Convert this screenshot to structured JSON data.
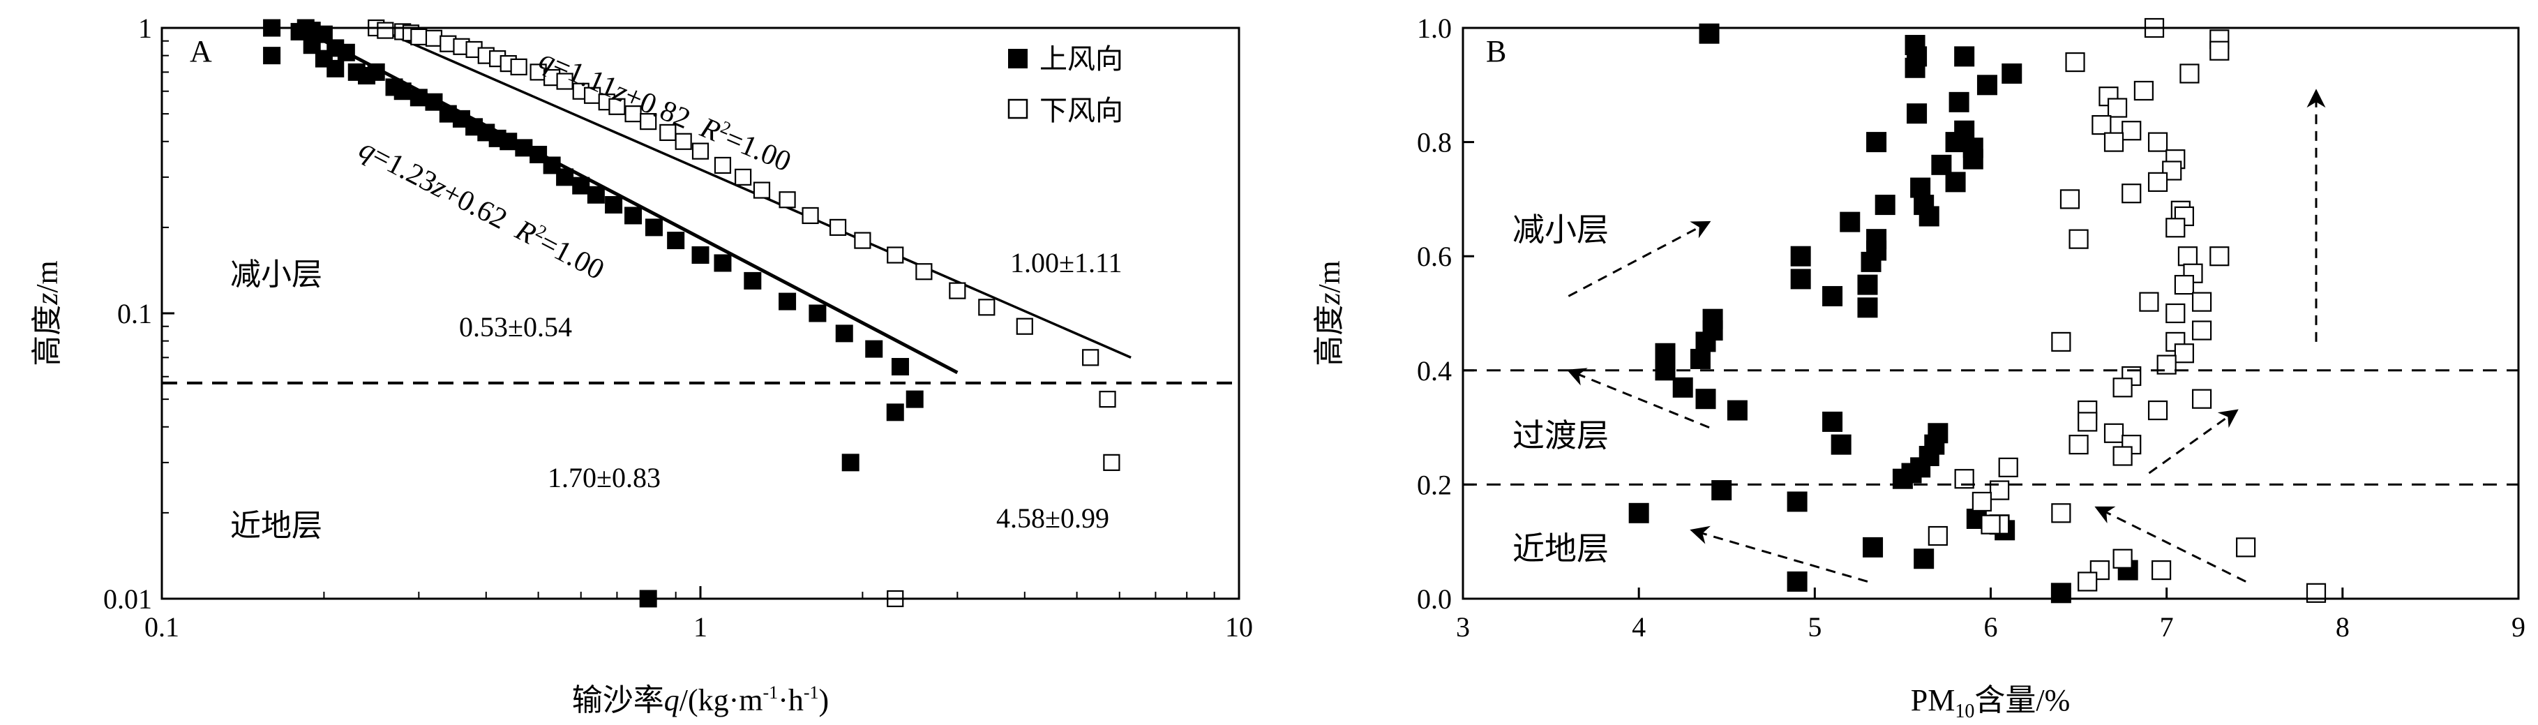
{
  "chart_data": [
    {
      "panel_label": "A",
      "type": "scatter",
      "xscale": "log",
      "yscale": "log",
      "xlim": [
        0.1,
        10
      ],
      "ylim": [
        0.01,
        1
      ],
      "x_ticks": [
        "0.1",
        "1",
        "10"
      ],
      "y_ticks": [
        "0.01",
        "0.1",
        "1"
      ],
      "xlabel_prefix": "输沙率",
      "xlabel_var": "q",
      "xlabel_unit_a": "/(kg·m",
      "xlabel_sup1": "-1",
      "xlabel_unit_b": "·h",
      "xlabel_sup2": "-1",
      "xlabel_unit_c": ")",
      "ylabel_prefix": "高度",
      "ylabel_var": "z",
      "ylabel_unit": "/m",
      "legend": [
        "上风向",
        "下风向"
      ],
      "legend_position": "top-right",
      "divider_y": 0.057,
      "series": [
        {
          "name": "上风向",
          "marker": "filled-square",
          "points": [
            [
              0.16,
              1.0
            ],
            [
              0.16,
              0.8
            ],
            [
              0.18,
              0.97
            ],
            [
              0.185,
              1.0
            ],
            [
              0.19,
              0.98
            ],
            [
              0.19,
              0.87
            ],
            [
              0.2,
              0.95
            ],
            [
              0.2,
              0.78
            ],
            [
              0.21,
              0.85
            ],
            [
              0.21,
              0.72
            ],
            [
              0.22,
              0.82
            ],
            [
              0.23,
              0.7
            ],
            [
              0.24,
              0.68
            ],
            [
              0.25,
              0.7
            ],
            [
              0.27,
              0.62
            ],
            [
              0.28,
              0.6
            ],
            [
              0.3,
              0.57
            ],
            [
              0.32,
              0.55
            ],
            [
              0.34,
              0.5
            ],
            [
              0.36,
              0.48
            ],
            [
              0.38,
              0.45
            ],
            [
              0.4,
              0.43
            ],
            [
              0.42,
              0.41
            ],
            [
              0.44,
              0.4
            ],
            [
              0.47,
              0.38
            ],
            [
              0.5,
              0.36
            ],
            [
              0.53,
              0.33
            ],
            [
              0.56,
              0.3
            ],
            [
              0.6,
              0.28
            ],
            [
              0.64,
              0.26
            ],
            [
              0.69,
              0.24
            ],
            [
              0.75,
              0.22
            ],
            [
              0.82,
              0.2
            ],
            [
              0.9,
              0.18
            ],
            [
              1.0,
              0.16
            ],
            [
              1.1,
              0.15
            ],
            [
              1.25,
              0.13
            ],
            [
              1.45,
              0.11
            ],
            [
              1.65,
              0.1
            ],
            [
              1.85,
              0.085
            ],
            [
              2.1,
              0.075
            ],
            [
              2.35,
              0.065
            ],
            [
              2.5,
              0.05
            ],
            [
              2.3,
              0.045
            ],
            [
              1.9,
              0.03
            ],
            [
              0.8,
              0.01
            ]
          ]
        },
        {
          "name": "下风向",
          "marker": "open-square",
          "points": [
            [
              0.25,
              1.0
            ],
            [
              0.26,
              0.98
            ],
            [
              0.28,
              0.97
            ],
            [
              0.29,
              0.96
            ],
            [
              0.3,
              0.93
            ],
            [
              0.32,
              0.92
            ],
            [
              0.34,
              0.88
            ],
            [
              0.36,
              0.86
            ],
            [
              0.38,
              0.84
            ],
            [
              0.4,
              0.8
            ],
            [
              0.42,
              0.78
            ],
            [
              0.44,
              0.75
            ],
            [
              0.46,
              0.73
            ],
            [
              0.5,
              0.7
            ],
            [
              0.53,
              0.67
            ],
            [
              0.56,
              0.65
            ],
            [
              0.6,
              0.6
            ],
            [
              0.63,
              0.58
            ],
            [
              0.67,
              0.55
            ],
            [
              0.7,
              0.53
            ],
            [
              0.75,
              0.5
            ],
            [
              0.8,
              0.47
            ],
            [
              0.87,
              0.43
            ],
            [
              0.93,
              0.4
            ],
            [
              1.0,
              0.37
            ],
            [
              1.1,
              0.33
            ],
            [
              1.2,
              0.3
            ],
            [
              1.3,
              0.27
            ],
            [
              1.45,
              0.25
            ],
            [
              1.6,
              0.22
            ],
            [
              1.8,
              0.2
            ],
            [
              2.0,
              0.18
            ],
            [
              2.3,
              0.16
            ],
            [
              2.6,
              0.14
            ],
            [
              3.0,
              0.12
            ],
            [
              3.4,
              0.105
            ],
            [
              4.0,
              0.09
            ],
            [
              5.3,
              0.07
            ],
            [
              5.7,
              0.05
            ],
            [
              5.8,
              0.03
            ],
            [
              2.3,
              0.01
            ]
          ]
        }
      ],
      "fit_lines": [
        {
          "series": "上风向",
          "x": [
            0.18,
            3.0
          ],
          "y": [
            1.0,
            0.062
          ]
        },
        {
          "series": "下风向",
          "x": [
            0.25,
            6.3
          ],
          "y": [
            1.0,
            0.07
          ]
        }
      ],
      "annotations": {
        "eq_downwind_q": "q",
        "eq_downwind_mid": "=1.11",
        "eq_downwind_z": "z",
        "eq_downwind_rest": "+0.82  ",
        "eq_downwind_R": "R",
        "eq_downwind_sup": "2",
        "eq_downwind_end": "=1.00",
        "eq_upwind_q": "q",
        "eq_upwind_mid": "=1.23",
        "eq_upwind_z": "z",
        "eq_upwind_rest": "+0.62  ",
        "eq_upwind_R": "R",
        "eq_upwind_sup": "2",
        "eq_upwind_end": "=1.00",
        "layer_upper": "减小层",
        "layer_lower": "近地层",
        "val_upper_upwind": "0.53±0.54",
        "val_upper_downwind": "1.00±1.11",
        "val_lower_upwind": "1.70±0.83",
        "val_lower_downwind": "4.58±0.99"
      }
    },
    {
      "panel_label": "B",
      "type": "scatter",
      "xlim": [
        3,
        9
      ],
      "ylim": [
        0.0,
        1.0
      ],
      "x_ticks": [
        "3",
        "4",
        "5",
        "6",
        "7",
        "8",
        "9"
      ],
      "y_ticks": [
        "0.0",
        "0.2",
        "0.4",
        "0.6",
        "0.8",
        "1.0"
      ],
      "xlabel_a": "PM",
      "xlabel_sub": "10",
      "xlabel_b": "含量/%",
      "ylabel_prefix": "高度",
      "ylabel_var": "z",
      "ylabel_unit": "/m",
      "dividers_y": [
        0.4,
        0.2
      ],
      "layer_labels": [
        "减小层",
        "过渡层",
        "近地层"
      ],
      "series": [
        {
          "name": "上风向",
          "marker": "filled-square",
          "points": [
            [
              4.4,
              0.99
            ],
            [
              5.57,
              0.97
            ],
            [
              5.58,
              0.95
            ],
            [
              5.85,
              0.95
            ],
            [
              6.12,
              0.92
            ],
            [
              5.57,
              0.93
            ],
            [
              5.98,
              0.9
            ],
            [
              5.82,
              0.87
            ],
            [
              5.58,
              0.85
            ],
            [
              5.85,
              0.82
            ],
            [
              5.8,
              0.8
            ],
            [
              5.9,
              0.79
            ],
            [
              5.9,
              0.77
            ],
            [
              5.35,
              0.8
            ],
            [
              5.72,
              0.76
            ],
            [
              5.8,
              0.73
            ],
            [
              5.6,
              0.72
            ],
            [
              5.62,
              0.69
            ],
            [
              5.65,
              0.67
            ],
            [
              5.4,
              0.69
            ],
            [
              5.2,
              0.66
            ],
            [
              5.35,
              0.63
            ],
            [
              5.35,
              0.61
            ],
            [
              5.32,
              0.59
            ],
            [
              4.92,
              0.6
            ],
            [
              4.92,
              0.56
            ],
            [
              5.3,
              0.55
            ],
            [
              5.1,
              0.53
            ],
            [
              5.3,
              0.51
            ],
            [
              4.42,
              0.49
            ],
            [
              4.42,
              0.47
            ],
            [
              4.38,
              0.45
            ],
            [
              4.35,
              0.42
            ],
            [
              4.15,
              0.43
            ],
            [
              4.15,
              0.4
            ],
            [
              4.25,
              0.37
            ],
            [
              4.38,
              0.35
            ],
            [
              4.56,
              0.33
            ],
            [
              5.1,
              0.31
            ],
            [
              5.15,
              0.27
            ],
            [
              5.7,
              0.29
            ],
            [
              5.68,
              0.27
            ],
            [
              5.65,
              0.25
            ],
            [
              5.6,
              0.23
            ],
            [
              5.55,
              0.22
            ],
            [
              5.5,
              0.21
            ],
            [
              4.0,
              0.15
            ],
            [
              4.47,
              0.19
            ],
            [
              4.9,
              0.17
            ],
            [
              5.92,
              0.14
            ],
            [
              6.05,
              0.13
            ],
            [
              6.08,
              0.12
            ],
            [
              5.33,
              0.09
            ],
            [
              5.62,
              0.07
            ],
            [
              6.78,
              0.05
            ],
            [
              4.9,
              0.03
            ],
            [
              6.4,
              0.01
            ]
          ]
        },
        {
          "name": "下风向",
          "marker": "open-square",
          "points": [
            [
              6.93,
              1.0
            ],
            [
              7.3,
              0.98
            ],
            [
              7.3,
              0.96
            ],
            [
              6.48,
              0.94
            ],
            [
              7.13,
              0.92
            ],
            [
              6.87,
              0.89
            ],
            [
              6.67,
              0.88
            ],
            [
              6.72,
              0.86
            ],
            [
              6.63,
              0.83
            ],
            [
              6.8,
              0.82
            ],
            [
              6.95,
              0.8
            ],
            [
              6.7,
              0.8
            ],
            [
              7.05,
              0.77
            ],
            [
              7.03,
              0.75
            ],
            [
              6.95,
              0.73
            ],
            [
              6.8,
              0.71
            ],
            [
              6.45,
              0.7
            ],
            [
              7.08,
              0.68
            ],
            [
              7.1,
              0.67
            ],
            [
              7.05,
              0.65
            ],
            [
              6.5,
              0.63
            ],
            [
              7.12,
              0.6
            ],
            [
              7.3,
              0.6
            ],
            [
              7.15,
              0.57
            ],
            [
              7.1,
              0.55
            ],
            [
              6.9,
              0.52
            ],
            [
              7.2,
              0.52
            ],
            [
              7.05,
              0.5
            ],
            [
              7.2,
              0.47
            ],
            [
              7.05,
              0.45
            ],
            [
              6.4,
              0.45
            ],
            [
              7.1,
              0.43
            ],
            [
              7.0,
              0.41
            ],
            [
              6.8,
              0.39
            ],
            [
              6.75,
              0.37
            ],
            [
              7.2,
              0.35
            ],
            [
              6.55,
              0.33
            ],
            [
              6.95,
              0.33
            ],
            [
              6.55,
              0.31
            ],
            [
              6.7,
              0.29
            ],
            [
              6.5,
              0.27
            ],
            [
              6.8,
              0.27
            ],
            [
              6.75,
              0.25
            ],
            [
              6.1,
              0.23
            ],
            [
              5.85,
              0.21
            ],
            [
              6.05,
              0.19
            ],
            [
              5.95,
              0.17
            ],
            [
              6.4,
              0.15
            ],
            [
              6.05,
              0.13
            ],
            [
              6.0,
              0.13
            ],
            [
              5.7,
              0.11
            ],
            [
              7.45,
              0.09
            ],
            [
              6.75,
              0.07
            ],
            [
              6.62,
              0.05
            ],
            [
              6.97,
              0.05
            ],
            [
              6.55,
              0.03
            ],
            [
              7.85,
              0.01
            ]
          ]
        }
      ],
      "arrows": [
        {
          "from": [
            3.6,
            0.53
          ],
          "to": [
            4.4,
            0.66
          ]
        },
        {
          "from": [
            4.4,
            0.3
          ],
          "to": [
            3.6,
            0.4
          ]
        },
        {
          "from": [
            5.3,
            0.03
          ],
          "to": [
            4.3,
            0.12
          ]
        },
        {
          "from": [
            7.45,
            0.03
          ],
          "to": [
            6.6,
            0.16
          ]
        },
        {
          "from": [
            6.9,
            0.22
          ],
          "to": [
            7.4,
            0.33
          ]
        },
        {
          "from": [
            7.85,
            0.45
          ],
          "to": [
            7.85,
            0.89
          ]
        }
      ]
    }
  ]
}
